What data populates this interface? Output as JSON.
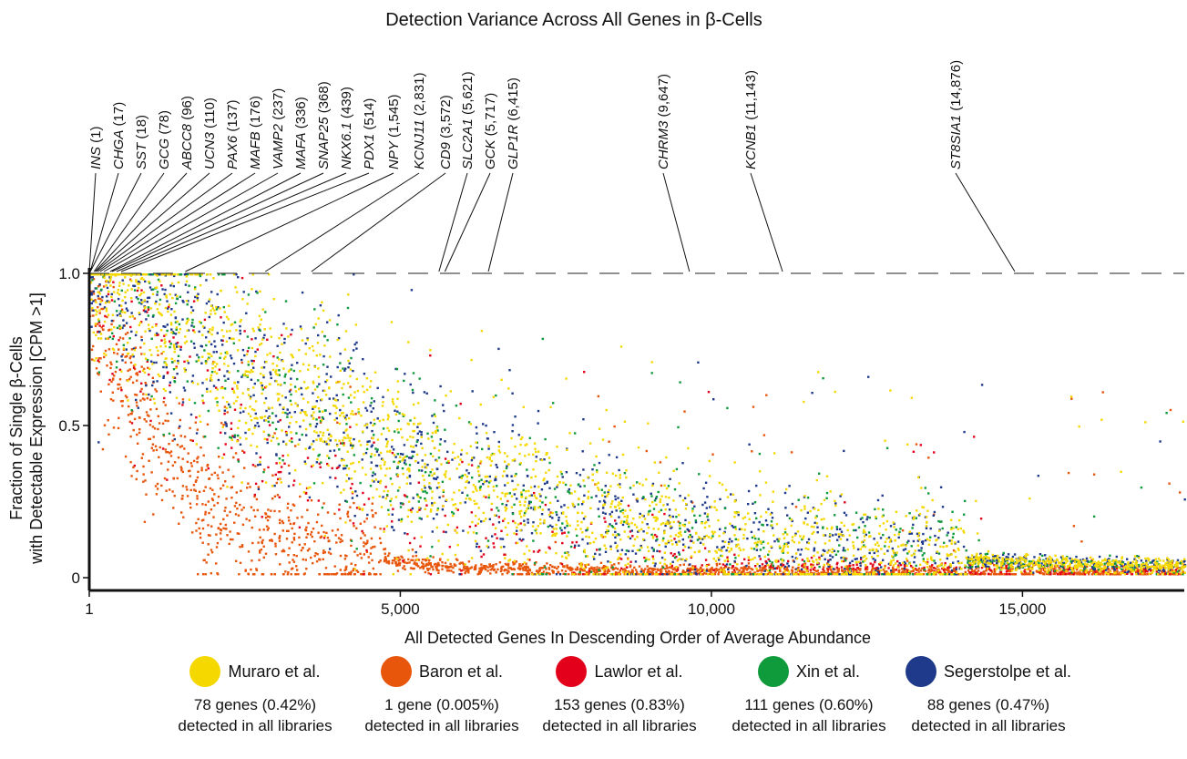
{
  "chart_data": {
    "type": "scatter",
    "title": "Detection Variance Across All Genes in β-Cells",
    "xlabel": "All Detected Genes In Descending Order of Average Abundance",
    "ylabel_line1": "Fraction of Single β-Cells",
    "ylabel_line2": "with Detectable Expression [CPM >1]",
    "xlim": [
      1,
      17600
    ],
    "ylim": [
      0,
      1.0
    ],
    "x_ticks": [
      {
        "value": 1,
        "label": "1"
      },
      {
        "value": 5000,
        "label": "5,000"
      },
      {
        "value": 10000,
        "label": "10,000"
      },
      {
        "value": 15000,
        "label": "15,000"
      }
    ],
    "y_ticks": [
      {
        "value": 0,
        "label": "0"
      },
      {
        "value": 0.5,
        "label": "0.5"
      },
      {
        "value": 1.0,
        "label": "1.0"
      }
    ],
    "reference_line": {
      "y": 1.0,
      "style": "dashed"
    },
    "gene_annotations": [
      {
        "gene": "INS",
        "rank_text": "(1)",
        "rank": 1
      },
      {
        "gene": "CHGA",
        "rank_text": "(17)",
        "rank": 17
      },
      {
        "gene": "SST",
        "rank_text": "(18)",
        "rank": 18
      },
      {
        "gene": "GCG",
        "rank_text": "(78)",
        "rank": 78
      },
      {
        "gene": "ABCC8",
        "rank_text": "(96)",
        "rank": 96
      },
      {
        "gene": "UCN3",
        "rank_text": "(110)",
        "rank": 110
      },
      {
        "gene": "PAX6",
        "rank_text": "(137)",
        "rank": 137
      },
      {
        "gene": "MAFB",
        "rank_text": "(176)",
        "rank": 176
      },
      {
        "gene": "VAMP2",
        "rank_text": "(237)",
        "rank": 237
      },
      {
        "gene": "MAFA",
        "rank_text": "(336)",
        "rank": 336
      },
      {
        "gene": "SNAP25",
        "rank_text": "(368)",
        "rank": 368
      },
      {
        "gene": "NKX6.1",
        "rank_text": "(439)",
        "rank": 439
      },
      {
        "gene": "PDX1",
        "rank_text": "(514)",
        "rank": 514
      },
      {
        "gene": "NPY",
        "rank_text": "(1,545)",
        "rank": 1545
      },
      {
        "gene": "KCNJ11",
        "rank_text": "(2,831)",
        "rank": 2831
      },
      {
        "gene": "CD9",
        "rank_text": "(3,572)",
        "rank": 3572
      },
      {
        "gene": "SLC2A1",
        "rank_text": "(5,621)",
        "rank": 5621
      },
      {
        "gene": "GCK",
        "rank_text": "(5,717)",
        "rank": 5717
      },
      {
        "gene": "GLP1R",
        "rank_text": "(6,415)",
        "rank": 6415
      },
      {
        "gene": "CHRM3",
        "rank_text": "(9,647)",
        "rank": 9647
      },
      {
        "gene": "KCNB1",
        "rank_text": "(11,143)",
        "rank": 11143
      },
      {
        "gene": "ST8SIA1",
        "rank_text": "(14,876)",
        "rank": 14876
      }
    ],
    "series": [
      {
        "name": "Muraro et al.",
        "color": "#f5d800",
        "decay_profile": "slow",
        "all_libraries_text": "78 genes (0.42%) detected in all libraries",
        "genes_in_all": 78,
        "percent_in_all": 0.42
      },
      {
        "name": "Baron et al.",
        "color": "#e8560c",
        "decay_profile": "fast",
        "all_libraries_text": "1 gene (0.005%) detected in all libraries",
        "genes_in_all": 1,
        "percent_in_all": 0.005
      },
      {
        "name": "Lawlor et al.",
        "color": "#e3001b",
        "decay_profile": "medium",
        "all_libraries_text": "153 genes (0.83%) detected in all libraries",
        "genes_in_all": 153,
        "percent_in_all": 0.83
      },
      {
        "name": "Xin et al.",
        "color": "#0f9a3c",
        "decay_profile": "slow",
        "all_libraries_text": "111 genes (0.60%) detected in all libraries",
        "genes_in_all": 111,
        "percent_in_all": 0.6
      },
      {
        "name": "Segerstolpe et al.",
        "color": "#1f3a8a",
        "decay_profile": "slow",
        "all_libraries_text": "88 genes (0.47%) detected in all libraries",
        "genes_in_all": 88,
        "percent_in_all": 0.47
      }
    ],
    "legend_position": "bottom"
  }
}
